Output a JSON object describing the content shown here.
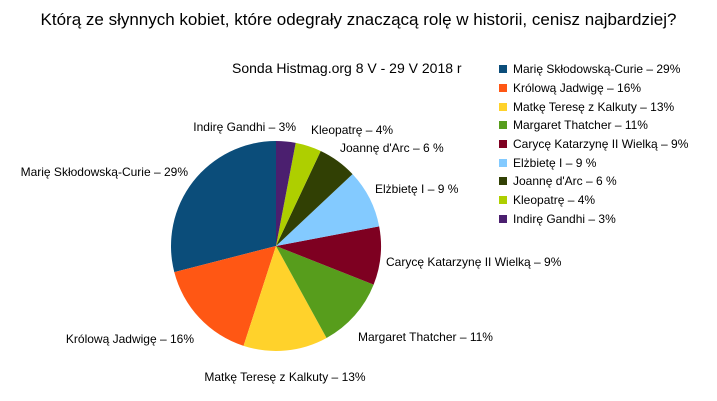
{
  "chart_data": {
    "type": "pie",
    "title": "Którą ze słynnych kobiet, które odegrały znaczącą rolę w historii, cenisz najbardziej?",
    "subtitle": "Sonda Histmag.org 8 V - 29 V 2018 r",
    "slices": [
      {
        "label": "Marię Skłodowską-Curie – 29%",
        "value": 29,
        "color": "#0b4d7a"
      },
      {
        "label": "Królową Jadwigę – 16%",
        "value": 16,
        "color": "#ff5714"
      },
      {
        "label": "Matkę Teresę z Kalkuty – 13%",
        "value": 13,
        "color": "#ffd22b"
      },
      {
        "label": "Margaret Thatcher – 11%",
        "value": 11,
        "color": "#579d1c"
      },
      {
        "label": "Carycę Katarzynę II Wielką – 9%",
        "value": 9,
        "color": "#7e0021"
      },
      {
        "label": "Elżbietę I – 9 %",
        "value": 9,
        "color": "#83caff"
      },
      {
        "label": "Joannę d'Arc – 6 %",
        "value": 6,
        "color": "#314004"
      },
      {
        "label": "Kleopatrę – 4%",
        "value": 4,
        "color": "#aecf00"
      },
      {
        "label": "Indirę Gandhi – 3%",
        "value": 3,
        "color": "#4b1f6f"
      }
    ],
    "legend_position": "right"
  }
}
